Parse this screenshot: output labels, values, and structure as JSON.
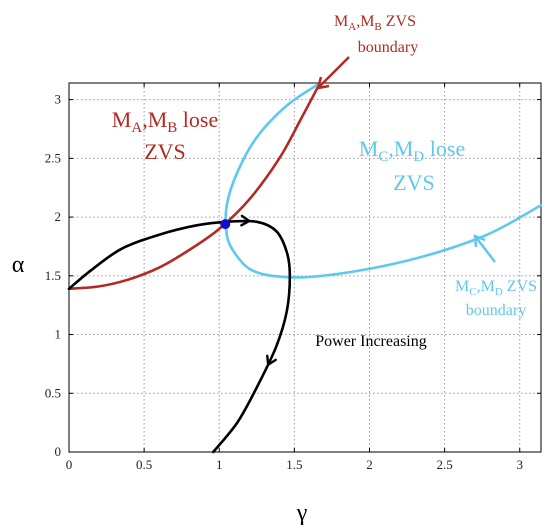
{
  "chart_data": {
    "type": "line",
    "title": "",
    "xlabel": "γ",
    "ylabel": "α",
    "xlim": [
      0,
      3.14159
    ],
    "ylim": [
      0,
      3.14159
    ],
    "grid": true,
    "x_ticks": [
      0,
      0.5,
      1,
      1.5,
      2,
      2.5,
      3
    ],
    "y_ticks": [
      0,
      0.5,
      1,
      1.5,
      2,
      2.5,
      3
    ],
    "x_tick_labels": [
      "0",
      "0.5",
      "1",
      "1.5",
      "2",
      "2.5",
      "3"
    ],
    "y_tick_labels": [
      "0",
      "0.5",
      "1",
      "1.5",
      "2",
      "2.5",
      "3"
    ],
    "colors": {
      "ab_boundary": "#b22a22",
      "cd_boundary": "#5ec8ee",
      "trajectory": "#000000",
      "operating_point": "#1010cc",
      "grid": "#9a9a9a"
    },
    "series": [
      {
        "key": "ab",
        "points": [
          [
            0,
            1.39
          ],
          [
            0.2,
            1.41
          ],
          [
            0.4,
            1.47
          ],
          [
            0.6,
            1.57
          ],
          [
            0.8,
            1.72
          ],
          [
            1.0,
            1.9
          ],
          [
            1.2,
            2.15
          ],
          [
            1.4,
            2.5
          ],
          [
            1.55,
            2.85
          ],
          [
            1.67,
            3.14
          ]
        ]
      },
      {
        "key": "cd",
        "points": [
          [
            1.67,
            3.14
          ],
          [
            1.45,
            2.95
          ],
          [
            1.25,
            2.68
          ],
          [
            1.12,
            2.38
          ],
          [
            1.05,
            2.1
          ],
          [
            1.05,
            1.85
          ],
          [
            1.1,
            1.7
          ],
          [
            1.2,
            1.56
          ],
          [
            1.35,
            1.5
          ],
          [
            1.6,
            1.49
          ],
          [
            2.0,
            1.56
          ],
          [
            2.4,
            1.68
          ],
          [
            2.8,
            1.86
          ],
          [
            3.14,
            2.1
          ]
        ]
      },
      {
        "key": "trajectory_upper",
        "points": [
          [
            0,
            1.39
          ],
          [
            0.15,
            1.55
          ],
          [
            0.35,
            1.73
          ],
          [
            0.6,
            1.85
          ],
          [
            0.85,
            1.93
          ],
          [
            1.05,
            1.96
          ],
          [
            1.25,
            1.96
          ],
          [
            1.38,
            1.88
          ],
          [
            1.45,
            1.7
          ],
          [
            1.47,
            1.5
          ],
          [
            1.45,
            1.2
          ],
          [
            1.38,
            0.9
          ],
          [
            1.25,
            0.55
          ],
          [
            1.12,
            0.25
          ],
          [
            0.96,
            0
          ]
        ]
      }
    ],
    "operating_point": [
      1.04,
      1.94
    ],
    "arrows_along_trajectory": [
      0.42,
      0.78
    ],
    "annotations": {
      "ab_zvs_boundary": {
        "main1": "M",
        "sub1": "A",
        "main2": ",M",
        "sub2": "B",
        "rest": " ZVS",
        "line2": "boundary"
      },
      "ab_lose": {
        "main1": "M",
        "sub1": "A",
        "main2": ",M",
        "sub2": "B",
        "rest": " lose",
        "line2": "ZVS"
      },
      "cd_lose": {
        "main1": "M",
        "sub1": "C",
        "main2": ",M",
        "sub2": "D",
        "rest": " lose",
        "line2": "ZVS"
      },
      "cd_zvs_boundary": {
        "main1": "M",
        "sub1": "C",
        "main2": ",M",
        "sub2": "D",
        "rest": " ZVS",
        "line2": "boundary"
      },
      "power": "Power Increasing"
    }
  }
}
